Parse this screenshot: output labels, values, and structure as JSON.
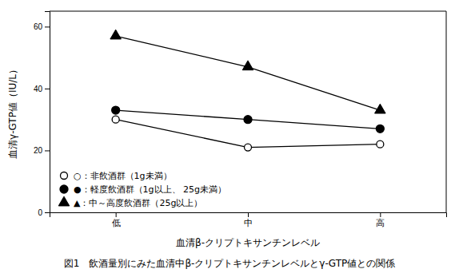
{
  "chart_data": {
    "type": "line",
    "title": "図1　飲酒量別にみた血清中β-クリプトキサンチンレベルとγ-GTP値との関係",
    "x_label": "血清β-クリプトキサンチンレベル",
    "y_label": "血清γ-GTP値（IU/L）",
    "categories": [
      "低",
      "中",
      "高"
    ],
    "series": [
      {
        "name": "○：非飲酒群（1g未満）",
        "color": "black",
        "marker": "circle-open",
        "values": [
          30,
          21,
          22
        ]
      },
      {
        "name": "●：軽度飲酒群（1g以上、 25g未満）",
        "color": "black",
        "marker": "circle",
        "values": [
          33,
          30,
          27
        ]
      },
      {
        "name": "▲：中～高度飲酒群（25g以上）",
        "color": "black",
        "marker": "triangle",
        "values": [
          57,
          47,
          33
        ]
      }
    ],
    "ylim": [
      0,
      65
    ],
    "yticks": [
      0,
      20,
      40,
      60
    ],
    "grid": false,
    "legend": "lower left"
  }
}
